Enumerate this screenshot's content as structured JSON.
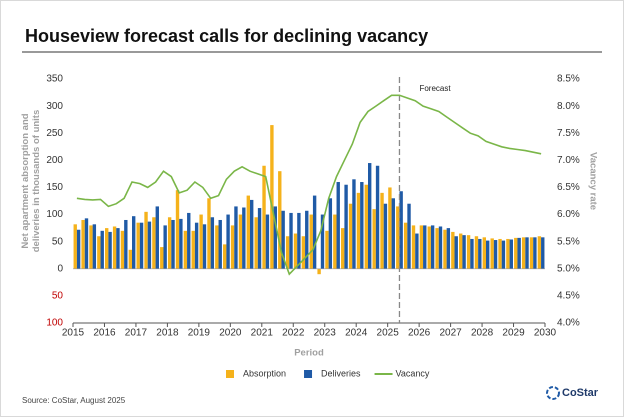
{
  "title": "Houseview forecast calls for declining vacancy",
  "source": "Source: CoStar, August 2025",
  "logo": "CoStar",
  "chart_data": {
    "type": "bar",
    "ylabel": [
      "Net apartment absorption and",
      "deliveries in thousands of units"
    ],
    "y2label": "Vacancy rate",
    "xlabel": "Period",
    "forecast_label": "Forecast",
    "forecast_x": 2025.375,
    "x": [
      2015.125,
      2015.375,
      2015.625,
      2015.875,
      2016.125,
      2016.375,
      2016.625,
      2016.875,
      2017.125,
      2017.375,
      2017.625,
      2017.875,
      2018.125,
      2018.375,
      2018.625,
      2018.875,
      2019.125,
      2019.375,
      2019.625,
      2019.875,
      2020.125,
      2020.375,
      2020.625,
      2020.875,
      2021.125,
      2021.375,
      2021.625,
      2021.875,
      2022.125,
      2022.375,
      2022.625,
      2022.875,
      2023.125,
      2023.375,
      2023.625,
      2023.875,
      2024.125,
      2024.375,
      2024.625,
      2024.875,
      2025.125,
      2025.375,
      2025.625,
      2025.875,
      2026.125,
      2026.375,
      2026.625,
      2026.875,
      2027.125,
      2027.375,
      2027.625,
      2027.875,
      2028.125,
      2028.375,
      2028.625,
      2028.875,
      2029.125,
      2029.375,
      2029.625,
      2029.875
    ],
    "series": [
      {
        "name": "Absorption",
        "type": "bar",
        "color": "#f5b21b",
        "values": [
          82,
          90,
          80,
          60,
          75,
          78,
          70,
          35,
          85,
          105,
          95,
          40,
          95,
          145,
          70,
          70,
          100,
          130,
          80,
          45,
          80,
          100,
          135,
          95,
          190,
          265,
          180,
          60,
          65,
          60,
          100,
          -10,
          70,
          100,
          75,
          120,
          140,
          155,
          110,
          140,
          150,
          115,
          85,
          80,
          80,
          78,
          75,
          72,
          68,
          65,
          62,
          60,
          58,
          56,
          55,
          55,
          57,
          58,
          58,
          60
        ]
      },
      {
        "name": "Deliveries",
        "type": "bar",
        "color": "#1f5aa6",
        "values": [
          72,
          93,
          82,
          70,
          68,
          75,
          90,
          97,
          85,
          87,
          115,
          80,
          90,
          92,
          103,
          85,
          82,
          95,
          90,
          100,
          115,
          113,
          127,
          112,
          100,
          115,
          107,
          103,
          103,
          107,
          135,
          100,
          130,
          160,
          155,
          165,
          160,
          195,
          190,
          120,
          130,
          143,
          120,
          65,
          80,
          80,
          78,
          75,
          60,
          62,
          55,
          55,
          52,
          53,
          52,
          54,
          57,
          58,
          58,
          58
        ]
      },
      {
        "name": "Vacancy",
        "type": "line",
        "axis": "y2",
        "color": "#7ab648",
        "values": [
          6.3,
          6.28,
          6.27,
          6.28,
          6.15,
          6.2,
          6.3,
          6.6,
          6.57,
          6.5,
          6.6,
          6.8,
          6.7,
          6.4,
          6.45,
          6.6,
          6.5,
          6.3,
          6.35,
          6.65,
          6.8,
          6.88,
          6.8,
          6.75,
          6.7,
          6.0,
          5.3,
          4.9,
          5.05,
          5.2,
          5.35,
          5.7,
          6.3,
          6.7,
          7.0,
          7.3,
          7.7,
          7.9,
          8.0,
          8.1,
          8.2,
          8.2,
          8.15,
          8.1,
          8.0,
          7.95,
          7.9,
          7.8,
          7.7,
          7.6,
          7.5,
          7.45,
          7.35,
          7.3,
          7.25,
          7.22,
          7.2,
          7.18,
          7.15,
          7.12
        ]
      }
    ],
    "xlim": [
      2015,
      2030
    ],
    "xticks": [
      2015,
      2016,
      2017,
      2018,
      2019,
      2020,
      2021,
      2022,
      2023,
      2024,
      2025,
      2026,
      2027,
      2028,
      2029,
      2030
    ],
    "ylim": [
      -100,
      350
    ],
    "yticks": [
      {
        "value": -100,
        "label": "100"
      },
      {
        "value": -50,
        "label": "50"
      },
      0,
      50,
      100,
      150,
      200,
      250,
      300,
      350
    ],
    "y2lim": [
      4.0,
      8.5
    ],
    "y2ticks": [
      {
        "value": 4.0,
        "label": "4.0%"
      },
      {
        "value": 4.5,
        "label": "4.5%"
      },
      {
        "value": 5.0,
        "label": "5.0%"
      },
      {
        "value": 5.5,
        "label": "5.5%"
      },
      {
        "value": 6.0,
        "label": "6.0%"
      },
      {
        "value": 6.5,
        "label": "6.5%"
      },
      {
        "value": 7.0,
        "label": "7.0%"
      },
      {
        "value": 7.5,
        "label": "7.5%"
      },
      {
        "value": 8.0,
        "label": "8.0%"
      },
      {
        "value": 8.5,
        "label": "8.5%"
      }
    ],
    "grid": false,
    "legend": "bottom"
  }
}
